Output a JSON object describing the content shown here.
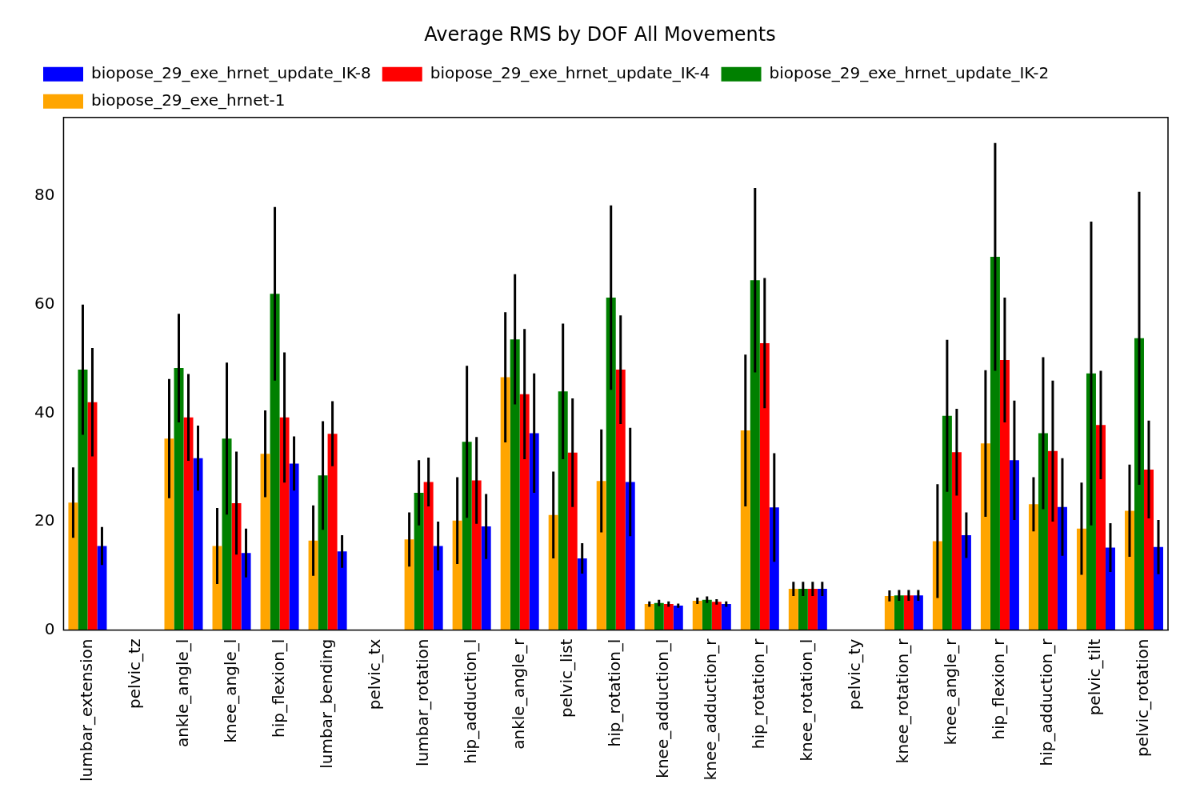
{
  "chart_data": {
    "type": "bar",
    "title": "Average RMS by DOF All Movements",
    "categories": [
      "lumbar_extension",
      "pelvic_tz",
      "ankle_angle_l",
      "knee_angle_l",
      "hip_flexion_l",
      "lumbar_bending",
      "pelvic_tx",
      "lumbar_rotation",
      "hip_adduction_l",
      "ankle_angle_r",
      "pelvic_list",
      "hip_rotation_l",
      "knee_adduction_l",
      "knee_adduction_r",
      "hip_rotation_r",
      "knee_rotation_l",
      "pelvic_ty",
      "knee_rotation_r",
      "knee_angle_r",
      "hip_flexion_r",
      "hip_adduction_r",
      "pelvic_tilt",
      "pelvic_rotation"
    ],
    "series": [
      {
        "name": "biopose_29_exe_hrnet-1",
        "color": "#ffa500",
        "values": [
          23.5,
          0,
          35.3,
          15.5,
          32.5,
          16.5,
          0,
          16.7,
          20.2,
          46.6,
          21.2,
          27.5,
          4.8,
          5.4,
          36.8,
          7.6,
          0,
          6.3,
          16.4,
          34.4,
          23.2,
          18.7,
          22.0
        ],
        "errors": [
          6.5,
          0,
          11,
          7,
          8,
          6.5,
          0,
          5,
          8,
          12,
          8,
          9.5,
          0.5,
          0.6,
          14,
          1.3,
          0,
          1,
          10.5,
          13.5,
          5,
          8.5,
          8.5
        ]
      },
      {
        "name": "biopose_29_exe_hrnet_update_IK-2",
        "color": "#008000",
        "values": [
          48.0,
          0,
          48.3,
          35.3,
          62.0,
          28.5,
          0,
          25.3,
          34.7,
          53.6,
          44.0,
          61.3,
          5.0,
          5.6,
          64.5,
          7.6,
          0,
          6.4,
          39.5,
          68.8,
          36.3,
          47.3,
          53.8
        ],
        "errors": [
          12,
          0,
          10,
          14,
          16,
          10,
          0,
          6,
          14,
          12,
          12.5,
          17,
          0.6,
          0.6,
          17,
          1.3,
          0,
          1,
          14,
          21,
          14,
          28,
          27
        ]
      },
      {
        "name": "biopose_29_exe_hrnet_update_IK-4",
        "color": "#ff0000",
        "values": [
          42.0,
          0,
          39.2,
          23.4,
          39.2,
          36.2,
          0,
          27.3,
          27.6,
          43.5,
          32.7,
          48.0,
          4.8,
          5.2,
          52.9,
          7.6,
          0,
          6.4,
          32.8,
          49.8,
          33.0,
          37.8,
          29.6
        ],
        "errors": [
          10,
          0,
          8,
          9.5,
          12,
          6,
          0,
          4.5,
          8,
          12,
          10,
          10,
          0.5,
          0.5,
          12,
          1.3,
          0,
          1,
          8,
          11.5,
          13,
          10,
          9
        ]
      },
      {
        "name": "biopose_29_exe_hrnet_update_IK-8",
        "color": "#0000ff",
        "values": [
          15.5,
          0,
          31.7,
          14.2,
          30.7,
          14.5,
          0,
          15.5,
          19.1,
          36.3,
          13.2,
          27.3,
          4.5,
          4.8,
          22.6,
          7.6,
          0,
          6.4,
          17.5,
          31.3,
          22.7,
          15.2,
          15.3
        ],
        "errors": [
          3.5,
          0,
          6,
          4.5,
          5,
          3,
          0,
          4.5,
          6,
          11,
          2.8,
          10,
          0.4,
          0.5,
          10,
          1.3,
          0,
          1,
          4.2,
          11,
          9,
          4.5,
          5
        ]
      }
    ],
    "ylim": [
      0,
      94.5
    ],
    "yticks": [
      0,
      20,
      40,
      60,
      80
    ],
    "grid": false,
    "legend": "upper left"
  }
}
